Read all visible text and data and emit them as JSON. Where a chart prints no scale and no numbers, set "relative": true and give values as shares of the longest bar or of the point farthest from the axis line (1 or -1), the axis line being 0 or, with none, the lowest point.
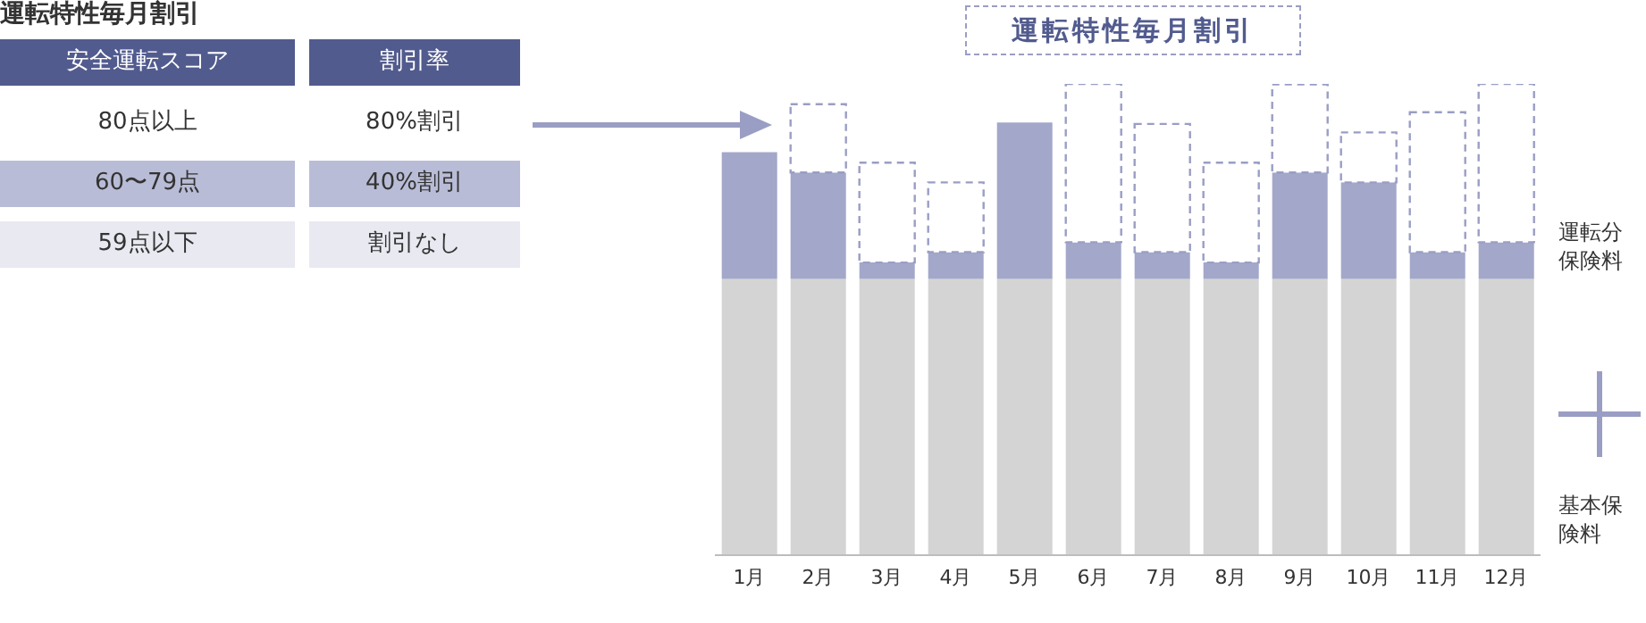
{
  "chart_data": [
    {
      "type": "other",
      "title": "運転特性毎月割引",
      "annotations": [
        "安全運転スコア",
        "割引率",
        "80点以上",
        "80%割引",
        "60〜79点",
        "40%割引",
        "59点以下",
        "割引なし"
      ]
    },
    {
      "type": "bar",
      "title": "運転特性毎月割引",
      "relative": true,
      "stacked": true,
      "legend": "right",
      "categories": [
        "1月",
        "2月",
        "3月",
        "4月",
        "5月",
        "6月",
        "7月",
        "8月",
        "9月",
        "10月",
        "11月",
        "12月"
      ],
      "series": [
        {
          "name": "基本保険料",
          "color": "#d4d4d4",
          "values": [
            0.586,
            0.586,
            0.586,
            0.586,
            0.586,
            0.586,
            0.586,
            0.586,
            0.586,
            0.586,
            0.586,
            0.586
          ]
        },
        {
          "name": "運転分保険料",
          "color": "#a3a7c9",
          "values": [
            0.269,
            0.226,
            0.035,
            0.057,
            0.332,
            0.078,
            0.057,
            0.035,
            0.226,
            0.205,
            0.057,
            0.078
          ]
        },
        {
          "color": "#9a9ec4",
          "line_style": "dashed",
          "values": [
            null,
            0.145,
            0.212,
            0.148,
            null,
            0.336,
            0.272,
            0.212,
            0.187,
            0.106,
            0.297,
            0.336
          ]
        }
      ]
    }
  ]
}
